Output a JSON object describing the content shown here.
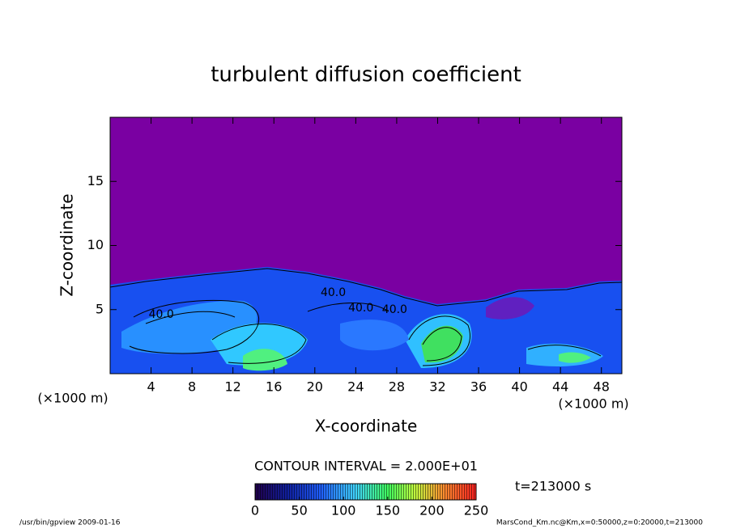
{
  "chart_data": {
    "type": "contour",
    "title": "turbulent diffusion coefficient",
    "xlabel": "X-coordinate",
    "ylabel": "Z-coordinate",
    "x_unit": "(×1000 m)",
    "y_unit": "(×1000 m)",
    "xlim": [
      0,
      50
    ],
    "ylim": [
      0,
      20
    ],
    "xticks": [
      4,
      8,
      12,
      16,
      20,
      24,
      28,
      32,
      36,
      40,
      44,
      48
    ],
    "yticks": [
      5,
      10,
      15
    ],
    "contour_labels": [
      {
        "text": "40.0",
        "x": 5,
        "y": 4.6
      },
      {
        "text": "40.0",
        "x": 21.8,
        "y": 6.3
      },
      {
        "text": "40.0",
        "x": 24.5,
        "y": 5.1
      },
      {
        "text": "40.0",
        "x": 27.8,
        "y": 5.0
      }
    ],
    "contour_interval": "CONTOUR INTERVAL = 2.000E+01",
    "colorbar": {
      "lim": [
        0,
        250
      ],
      "ticks": [
        0,
        50,
        100,
        150,
        200,
        250
      ]
    },
    "time_label": "t=213000 s",
    "footer_left": "/usr/bin/gpview  2009-01-16",
    "footer_right": "MarsCond_Km.nc@Km,x=0:50000,z=0:20000,t=213000"
  }
}
